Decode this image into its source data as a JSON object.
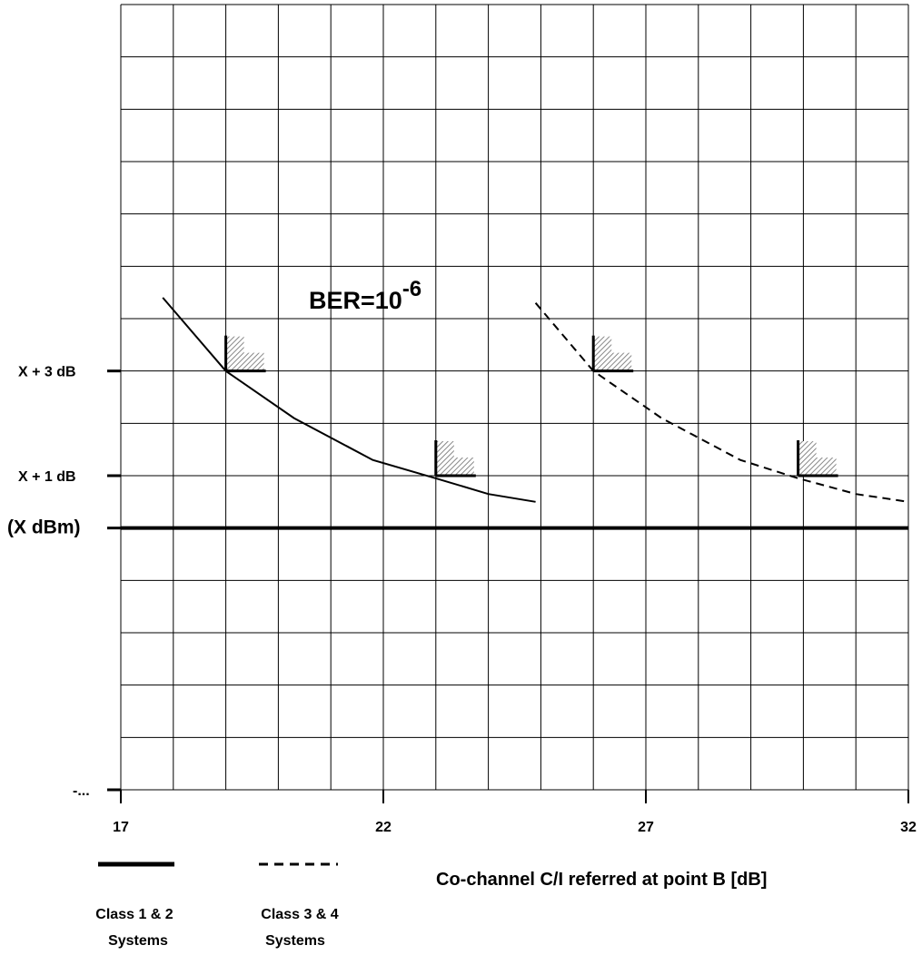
{
  "chart_data": {
    "type": "line",
    "title": "BER=10-6",
    "title_main": "BER=10",
    "title_sup": "-6",
    "xlabel": "Co-channel C/I referred at point B [dB]",
    "ylabel": "",
    "x_ticks": [
      "17",
      "22",
      "27",
      "32"
    ],
    "x_tick_values": [
      17,
      22,
      27,
      32
    ],
    "xlim": [
      17,
      32
    ],
    "y_tick_labels": [
      {
        "label": "X + 3 dB",
        "value": 3
      },
      {
        "label": "X + 1 dB",
        "value": 1
      },
      {
        "label": "(X dBm)",
        "value": 0
      },
      {
        "label": "-...",
        "value": -5
      }
    ],
    "ylim": [
      -5,
      10
    ],
    "grid": true,
    "reference_line": {
      "label": "(X dBm)",
      "y": 0
    },
    "series": [
      {
        "name": "Class 1 & 2 Systems",
        "style": "solid",
        "x": [
          17.8,
          19.0,
          20.3,
          21.8,
          23.0,
          24.0,
          24.9
        ],
        "y": [
          4.4,
          3.0,
          2.1,
          1.3,
          0.95,
          0.65,
          0.5
        ]
      },
      {
        "name": "Class 3 & 4 Systems",
        "style": "dashed",
        "x": [
          24.9,
          26.0,
          27.3,
          28.8,
          29.9,
          31.0,
          32.0
        ],
        "y": [
          4.3,
          3.0,
          2.1,
          1.3,
          0.95,
          0.65,
          0.5
        ]
      }
    ],
    "markers": [
      {
        "x": 19.0,
        "y": 3,
        "series": "Class 1 & 2 Systems"
      },
      {
        "x": 23.0,
        "y": 1,
        "series": "Class 1 & 2 Systems"
      },
      {
        "x": 26.0,
        "y": 3,
        "series": "Class 3 & 4 Systems"
      },
      {
        "x": 29.9,
        "y": 1,
        "series": "Class 3 & 4 Systems"
      }
    ],
    "legend": {
      "placement": "bottom-left",
      "entries": [
        {
          "line1": "Class 1 & 2",
          "line2": "Systems",
          "style": "solid"
        },
        {
          "line1": "Class 3 & 4",
          "line2": "Systems",
          "style": "dashed"
        }
      ]
    }
  },
  "colors": {
    "line": "#000000",
    "grid": "#000000",
    "hatch": "#9a9a9a",
    "background": "#ffffff"
  }
}
